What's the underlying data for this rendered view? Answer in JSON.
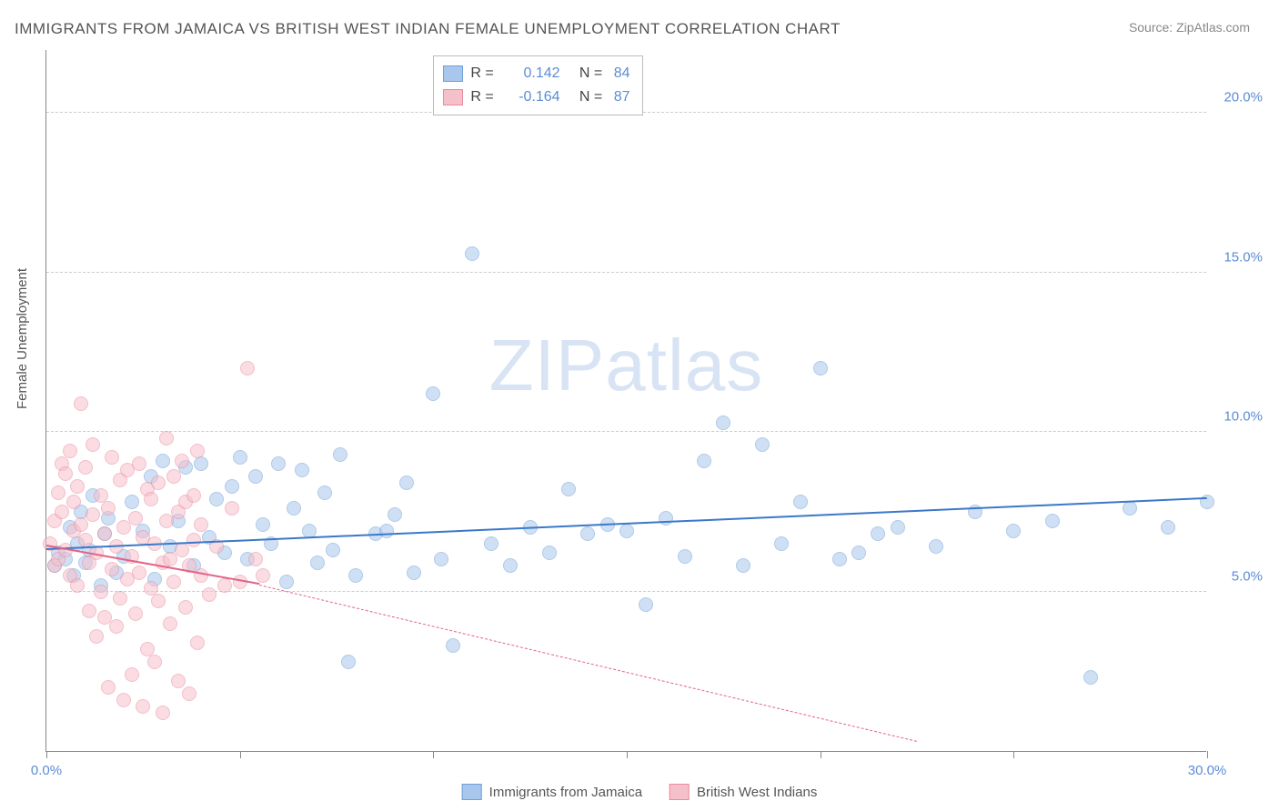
{
  "title": "IMMIGRANTS FROM JAMAICA VS BRITISH WEST INDIAN FEMALE UNEMPLOYMENT CORRELATION CHART",
  "source": "Source: ZipAtlas.com",
  "ylabel": "Female Unemployment",
  "watermark": "ZIPatlas",
  "chart": {
    "type": "scatter",
    "xlim": [
      0,
      30
    ],
    "ylim": [
      0,
      22
    ],
    "xtick_positions": [
      0,
      5,
      10,
      15,
      20,
      25,
      30
    ],
    "xtick_labels": [
      "0.0%",
      "",
      "",
      "",
      "",
      "",
      "30.0%"
    ],
    "ytick_positions": [
      5,
      10,
      15,
      20
    ],
    "ytick_labels": [
      "5.0%",
      "10.0%",
      "15.0%",
      "20.0%"
    ],
    "grid_color": "#cccccc",
    "background_color": "#ffffff",
    "axis_color": "#888888",
    "label_color": "#5b8dd6",
    "marker_radius": 8,
    "marker_opacity": 0.55,
    "series": [
      {
        "name": "Immigrants from Jamaica",
        "fill": "#a9c7ec",
        "stroke": "#6f9fd8",
        "trend_color": "#3b78c9",
        "trend": {
          "x1": 0,
          "y1": 6.3,
          "x2": 30,
          "y2": 7.9
        },
        "R": "0.142",
        "N": "84",
        "points": [
          [
            0.2,
            5.8
          ],
          [
            0.3,
            6.2
          ],
          [
            0.5,
            6.0
          ],
          [
            0.6,
            7.0
          ],
          [
            0.7,
            5.5
          ],
          [
            0.8,
            6.5
          ],
          [
            0.9,
            7.5
          ],
          [
            1.0,
            5.9
          ],
          [
            1.1,
            6.3
          ],
          [
            1.2,
            8.0
          ],
          [
            1.4,
            5.2
          ],
          [
            1.5,
            6.8
          ],
          [
            1.6,
            7.3
          ],
          [
            1.8,
            5.6
          ],
          [
            2.0,
            6.1
          ],
          [
            2.2,
            7.8
          ],
          [
            2.5,
            6.9
          ],
          [
            2.7,
            8.6
          ],
          [
            2.8,
            5.4
          ],
          [
            3.0,
            9.1
          ],
          [
            3.2,
            6.4
          ],
          [
            3.4,
            7.2
          ],
          [
            3.6,
            8.9
          ],
          [
            3.8,
            5.8
          ],
          [
            4.0,
            9.0
          ],
          [
            4.2,
            6.7
          ],
          [
            4.4,
            7.9
          ],
          [
            4.6,
            6.2
          ],
          [
            4.8,
            8.3
          ],
          [
            5.0,
            9.2
          ],
          [
            5.2,
            6.0
          ],
          [
            5.4,
            8.6
          ],
          [
            5.6,
            7.1
          ],
          [
            5.8,
            6.5
          ],
          [
            6.0,
            9.0
          ],
          [
            6.2,
            5.3
          ],
          [
            6.4,
            7.6
          ],
          [
            6.6,
            8.8
          ],
          [
            6.8,
            6.9
          ],
          [
            7.0,
            5.9
          ],
          [
            7.2,
            8.1
          ],
          [
            7.4,
            6.3
          ],
          [
            7.6,
            9.3
          ],
          [
            7.8,
            2.8
          ],
          [
            8.0,
            5.5
          ],
          [
            8.5,
            6.8
          ],
          [
            9.0,
            7.4
          ],
          [
            9.5,
            5.6
          ],
          [
            10.0,
            11.2
          ],
          [
            10.2,
            6.0
          ],
          [
            10.5,
            3.3
          ],
          [
            11.0,
            15.6
          ],
          [
            11.5,
            6.5
          ],
          [
            12.0,
            5.8
          ],
          [
            12.5,
            7.0
          ],
          [
            13.0,
            6.2
          ],
          [
            13.5,
            8.2
          ],
          [
            14.0,
            6.8
          ],
          [
            14.5,
            7.1
          ],
          [
            15.0,
            6.9
          ],
          [
            15.5,
            4.6
          ],
          [
            16.0,
            7.3
          ],
          [
            16.5,
            6.1
          ],
          [
            17.0,
            9.1
          ],
          [
            17.5,
            10.3
          ],
          [
            18.0,
            5.8
          ],
          [
            18.5,
            9.6
          ],
          [
            19.0,
            6.5
          ],
          [
            19.5,
            7.8
          ],
          [
            20.0,
            12.0
          ],
          [
            20.5,
            6.0
          ],
          [
            21.0,
            6.2
          ],
          [
            21.5,
            6.8
          ],
          [
            22.0,
            7.0
          ],
          [
            23.0,
            6.4
          ],
          [
            24.0,
            7.5
          ],
          [
            25.0,
            6.9
          ],
          [
            26.0,
            7.2
          ],
          [
            27.0,
            2.3
          ],
          [
            28.0,
            7.6
          ],
          [
            29.0,
            7.0
          ],
          [
            30.0,
            7.8
          ],
          [
            8.8,
            6.9
          ],
          [
            9.3,
            8.4
          ]
        ]
      },
      {
        "name": "British West Indians",
        "fill": "#f6c0cb",
        "stroke": "#e88ba0",
        "trend_color": "#e36387",
        "trend": {
          "x1": 0,
          "y1": 6.4,
          "x2": 5.5,
          "y2": 5.2
        },
        "trend_dash": {
          "x1": 5.5,
          "y1": 5.2,
          "x2": 22.5,
          "y2": 0.3
        },
        "R": "-0.164",
        "N": "87",
        "points": [
          [
            0.1,
            6.5
          ],
          [
            0.2,
            7.2
          ],
          [
            0.2,
            5.8
          ],
          [
            0.3,
            8.1
          ],
          [
            0.3,
            6.0
          ],
          [
            0.4,
            9.0
          ],
          [
            0.4,
            7.5
          ],
          [
            0.5,
            8.7
          ],
          [
            0.5,
            6.3
          ],
          [
            0.6,
            5.5
          ],
          [
            0.6,
            9.4
          ],
          [
            0.7,
            7.8
          ],
          [
            0.7,
            6.9
          ],
          [
            0.8,
            8.3
          ],
          [
            0.8,
            5.2
          ],
          [
            0.9,
            10.9
          ],
          [
            0.9,
            7.1
          ],
          [
            1.0,
            6.6
          ],
          [
            1.0,
            8.9
          ],
          [
            1.1,
            5.9
          ],
          [
            1.1,
            4.4
          ],
          [
            1.2,
            7.4
          ],
          [
            1.2,
            9.6
          ],
          [
            1.3,
            6.2
          ],
          [
            1.3,
            3.6
          ],
          [
            1.4,
            8.0
          ],
          [
            1.4,
            5.0
          ],
          [
            1.5,
            6.8
          ],
          [
            1.5,
            4.2
          ],
          [
            1.6,
            7.6
          ],
          [
            1.6,
            2.0
          ],
          [
            1.7,
            9.2
          ],
          [
            1.7,
            5.7
          ],
          [
            1.8,
            6.4
          ],
          [
            1.8,
            3.9
          ],
          [
            1.9,
            8.5
          ],
          [
            1.9,
            4.8
          ],
          [
            2.0,
            7.0
          ],
          [
            2.0,
            1.6
          ],
          [
            2.1,
            5.4
          ],
          [
            2.1,
            8.8
          ],
          [
            2.2,
            6.1
          ],
          [
            2.2,
            2.4
          ],
          [
            2.3,
            7.3
          ],
          [
            2.3,
            4.3
          ],
          [
            2.4,
            9.0
          ],
          [
            2.4,
            5.6
          ],
          [
            2.5,
            6.7
          ],
          [
            2.5,
            1.4
          ],
          [
            2.6,
            8.2
          ],
          [
            2.6,
            3.2
          ],
          [
            2.7,
            5.1
          ],
          [
            2.7,
            7.9
          ],
          [
            2.8,
            6.5
          ],
          [
            2.8,
            2.8
          ],
          [
            2.9,
            4.7
          ],
          [
            2.9,
            8.4
          ],
          [
            3.0,
            5.9
          ],
          [
            3.0,
            1.2
          ],
          [
            3.1,
            7.2
          ],
          [
            3.1,
            9.8
          ],
          [
            3.2,
            6.0
          ],
          [
            3.2,
            4.0
          ],
          [
            3.3,
            8.6
          ],
          [
            3.3,
            5.3
          ],
          [
            3.4,
            7.5
          ],
          [
            3.4,
            2.2
          ],
          [
            3.5,
            6.3
          ],
          [
            3.5,
            9.1
          ],
          [
            3.6,
            4.5
          ],
          [
            3.6,
            7.8
          ],
          [
            3.7,
            5.8
          ],
          [
            3.7,
            1.8
          ],
          [
            3.8,
            8.0
          ],
          [
            3.8,
            6.6
          ],
          [
            3.9,
            3.4
          ],
          [
            3.9,
            9.4
          ],
          [
            4.0,
            5.5
          ],
          [
            4.0,
            7.1
          ],
          [
            4.2,
            4.9
          ],
          [
            4.4,
            6.4
          ],
          [
            4.6,
            5.2
          ],
          [
            4.8,
            7.6
          ],
          [
            5.0,
            5.3
          ],
          [
            5.2,
            12.0
          ],
          [
            5.4,
            6.0
          ],
          [
            5.6,
            5.5
          ]
        ]
      }
    ],
    "bottom_legend": [
      {
        "label": "Immigrants from Jamaica",
        "fill": "#a9c7ec",
        "stroke": "#6f9fd8"
      },
      {
        "label": "British West Indians",
        "fill": "#f6c0cb",
        "stroke": "#e88ba0"
      }
    ]
  }
}
